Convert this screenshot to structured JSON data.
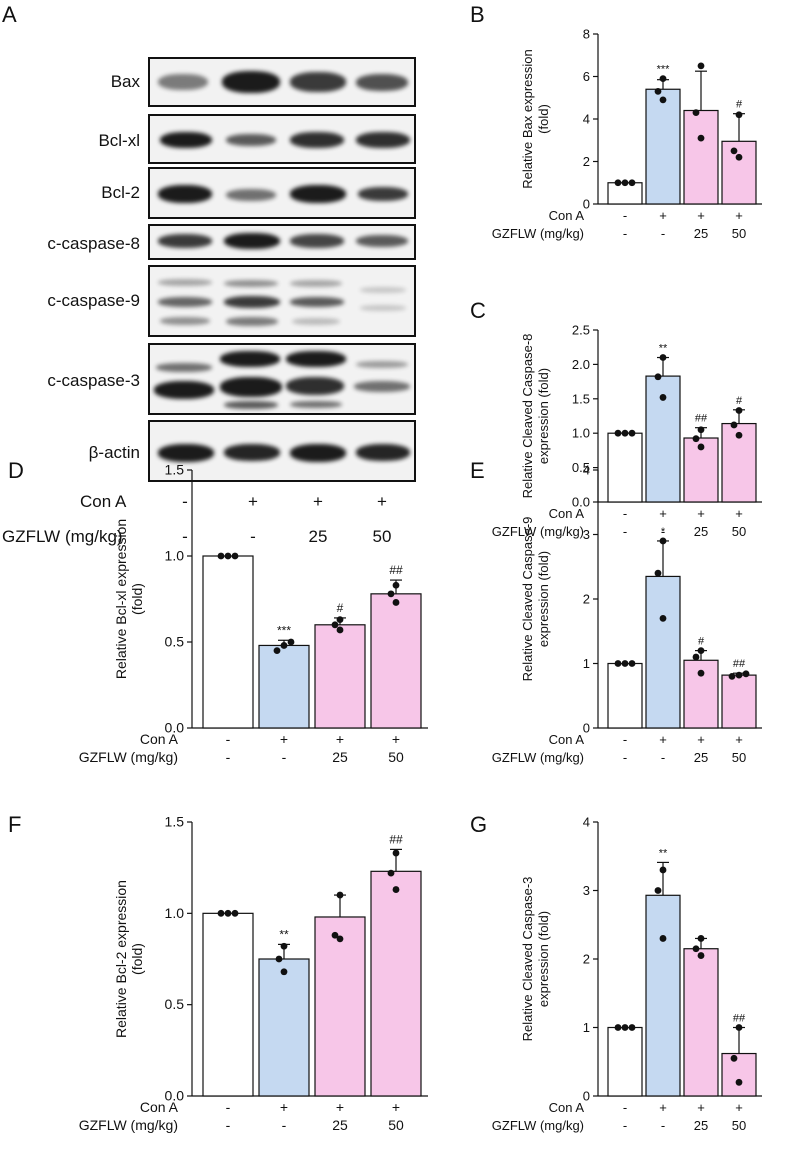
{
  "panel_letters": {
    "a": "A",
    "b": "B",
    "c": "C",
    "d": "D",
    "e": "E",
    "f": "F",
    "g": "G"
  },
  "blot": {
    "proteins": [
      "Bax",
      "Bcl-xl",
      "Bcl-2",
      "c-caspase-8",
      "c-caspase-9",
      "c-caspase-3",
      "β-actin"
    ],
    "row_labels": [
      "Con A",
      "GZFLW (mg/kg)"
    ],
    "cona": [
      "-",
      "+",
      "+",
      "+"
    ],
    "gzflw": [
      "-",
      "-",
      "25",
      "50"
    ]
  },
  "colors": {
    "control": "#ffffff",
    "cona": "#c5d9f1",
    "gzflw": "#f7c6e8",
    "stroke": "#111111"
  },
  "chart_data": [
    {
      "id": "B",
      "type": "bar",
      "categories": [
        "1",
        "2",
        "3",
        "4"
      ],
      "values": [
        1.0,
        5.4,
        4.4,
        2.95
      ],
      "errors": [
        0.0,
        0.45,
        1.85,
        1.3
      ],
      "points": [
        [
          1.0,
          1.0,
          1.0
        ],
        [
          4.9,
          5.3,
          5.9
        ],
        [
          3.1,
          4.3,
          6.5
        ],
        [
          2.2,
          2.5,
          4.2
        ]
      ],
      "sig": [
        "",
        "***",
        "",
        "#"
      ],
      "ylabel": [
        "Relative Bax expression",
        "(fold)"
      ],
      "ylim": [
        0,
        8
      ],
      "yticks": [
        "0",
        "2",
        "4",
        "6",
        "8"
      ],
      "ytick_values": [
        0,
        2,
        4,
        6,
        8
      ],
      "row_labels": [
        "Con A",
        "GZFLW (mg/kg)"
      ],
      "cona": [
        "-",
        "+",
        "+",
        "+"
      ],
      "gzflw": [
        "-",
        "-",
        "25",
        "50"
      ]
    },
    {
      "id": "C",
      "type": "bar",
      "categories": [
        "1",
        "2",
        "3",
        "4"
      ],
      "values": [
        1.0,
        1.83,
        0.93,
        1.14
      ],
      "errors": [
        0.0,
        0.27,
        0.15,
        0.2
      ],
      "points": [
        [
          1.0,
          1.0,
          1.0
        ],
        [
          1.52,
          1.82,
          2.1
        ],
        [
          0.8,
          0.92,
          1.05
        ],
        [
          0.97,
          1.12,
          1.33
        ]
      ],
      "sig": [
        "",
        "**",
        "##",
        "#"
      ],
      "ylabel": [
        "Relative Cleaved Caspase-8",
        "expression (fold)"
      ],
      "ylim": [
        0,
        2.5
      ],
      "yticks": [
        "0.0",
        "0.5",
        "1.0",
        "1.5",
        "2.0",
        "2.5"
      ],
      "ytick_values": [
        0,
        0.5,
        1.0,
        1.5,
        2.0,
        2.5
      ],
      "row_labels": [
        "Con A",
        "GZFLW (mg/kg)"
      ],
      "cona": [
        "-",
        "+",
        "+",
        "+"
      ],
      "gzflw": [
        "-",
        "-",
        "25",
        "50"
      ]
    },
    {
      "id": "D",
      "type": "bar",
      "categories": [
        "1",
        "2",
        "3",
        "4"
      ],
      "values": [
        1.0,
        0.48,
        0.6,
        0.78
      ],
      "errors": [
        0.0,
        0.03,
        0.04,
        0.08
      ],
      "points": [
        [
          1.0,
          1.0,
          1.0
        ],
        [
          0.45,
          0.48,
          0.5
        ],
        [
          0.57,
          0.6,
          0.63
        ],
        [
          0.73,
          0.78,
          0.83
        ]
      ],
      "sig": [
        "",
        "***",
        "#",
        "##"
      ],
      "ylabel": [
        "Relative Bcl-xl expression",
        "(fold)"
      ],
      "ylim": [
        0,
        1.5
      ],
      "yticks": [
        "0.0",
        "0.5",
        "1.0",
        "1.5"
      ],
      "ytick_values": [
        0,
        0.5,
        1.0,
        1.5
      ],
      "row_labels": [
        "Con A",
        "GZFLW (mg/kg)"
      ],
      "cona": [
        "-",
        "+",
        "+",
        "+"
      ],
      "gzflw": [
        "-",
        "-",
        "25",
        "50"
      ]
    },
    {
      "id": "E",
      "type": "bar",
      "categories": [
        "1",
        "2",
        "3",
        "4"
      ],
      "values": [
        1.0,
        2.35,
        1.05,
        0.82
      ],
      "errors": [
        0.0,
        0.55,
        0.15,
        0.03
      ],
      "points": [
        [
          1.0,
          1.0,
          1.0
        ],
        [
          1.7,
          2.4,
          2.9
        ],
        [
          0.85,
          1.1,
          1.2
        ],
        [
          0.8,
          0.82,
          0.84
        ]
      ],
      "sig": [
        "",
        "*",
        "#",
        "##"
      ],
      "ylabel": [
        "Relative Cleaved Caspase-9",
        "expression (fold)"
      ],
      "ylim": [
        0,
        4
      ],
      "yticks": [
        "0",
        "1",
        "2",
        "3",
        "4"
      ],
      "ytick_values": [
        0,
        1,
        2,
        3,
        4
      ],
      "row_labels": [
        "Con A",
        "GZFLW (mg/kg)"
      ],
      "cona": [
        "-",
        "+",
        "+",
        "+"
      ],
      "gzflw": [
        "-",
        "-",
        "25",
        "50"
      ]
    },
    {
      "id": "F",
      "type": "bar",
      "categories": [
        "1",
        "2",
        "3",
        "4"
      ],
      "values": [
        1.0,
        0.75,
        0.98,
        1.23
      ],
      "errors": [
        0.0,
        0.08,
        0.12,
        0.12
      ],
      "points": [
        [
          1.0,
          1.0,
          1.0
        ],
        [
          0.68,
          0.75,
          0.82
        ],
        [
          0.86,
          0.88,
          1.1
        ],
        [
          1.13,
          1.22,
          1.33
        ]
      ],
      "sig": [
        "",
        "**",
        "",
        "##"
      ],
      "ylabel": [
        "Relative Bcl-2 expression",
        "(fold)"
      ],
      "ylim": [
        0,
        1.5
      ],
      "yticks": [
        "0.0",
        "0.5",
        "1.0",
        "1.5"
      ],
      "ytick_values": [
        0,
        0.5,
        1.0,
        1.5
      ],
      "row_labels": [
        "Con A",
        "GZFLW (mg/kg)"
      ],
      "cona": [
        "-",
        "+",
        "+",
        "+"
      ],
      "gzflw": [
        "-",
        "-",
        "25",
        "50"
      ]
    },
    {
      "id": "G",
      "type": "bar",
      "categories": [
        "1",
        "2",
        "3",
        "4"
      ],
      "values": [
        1.0,
        2.93,
        2.15,
        0.62
      ],
      "errors": [
        0.0,
        0.48,
        0.15,
        0.38
      ],
      "points": [
        [
          1.0,
          1.0,
          1.0
        ],
        [
          2.3,
          3.0,
          3.3
        ],
        [
          2.05,
          2.15,
          2.3
        ],
        [
          0.2,
          0.55,
          1.0
        ]
      ],
      "sig": [
        "",
        "**",
        "",
        "##"
      ],
      "ylabel": [
        "Relative Cleaved Caspase-3",
        "expression (fold)"
      ],
      "ylim": [
        0,
        4
      ],
      "yticks": [
        "0",
        "1",
        "2",
        "3",
        "4"
      ],
      "ytick_values": [
        0,
        1,
        2,
        3,
        4
      ],
      "row_labels": [
        "Con A",
        "GZFLW (mg/kg)"
      ],
      "cona": [
        "-",
        "+",
        "+",
        "+"
      ],
      "gzflw": [
        "-",
        "-",
        "25",
        "50"
      ]
    }
  ]
}
